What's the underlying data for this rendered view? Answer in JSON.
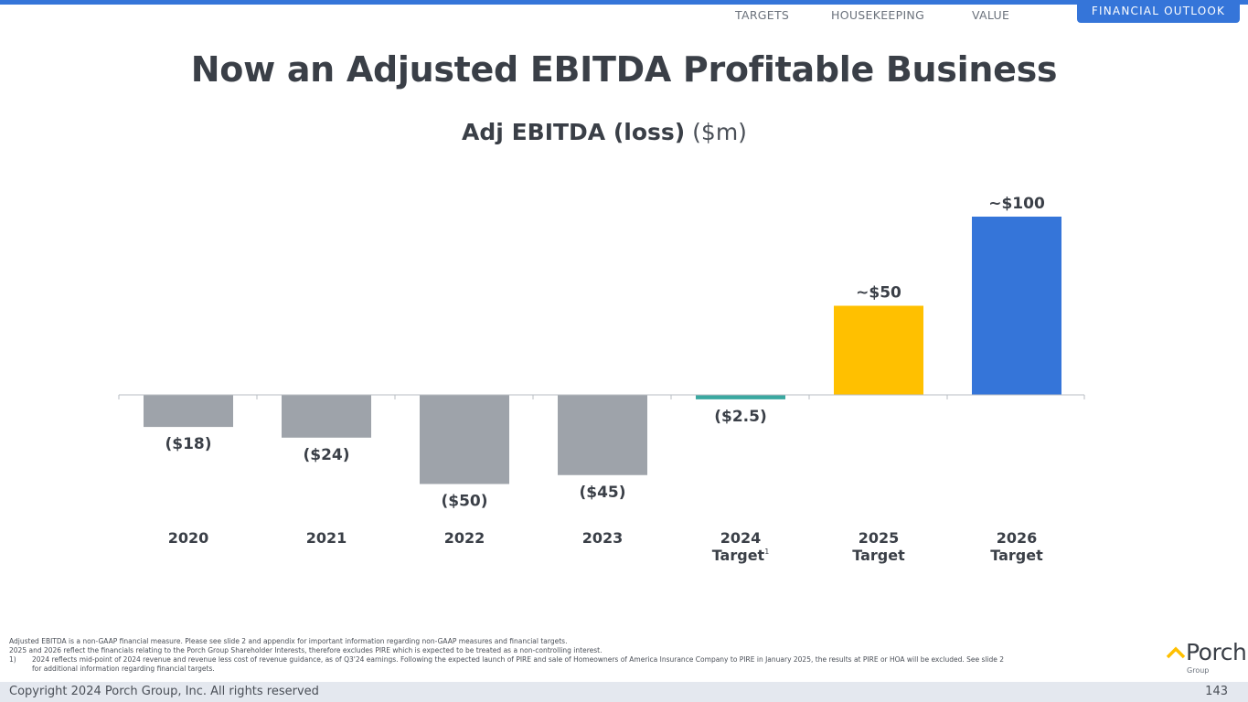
{
  "nav": {
    "items": [
      "TARGETS",
      "HOUSEKEEPING",
      "VALUE"
    ],
    "active": "FINANCIAL OUTLOOK"
  },
  "title": "Now an Adjusted EBITDA Profitable Business",
  "chart_title": {
    "bold": "Adj EBITDA (loss)",
    "unit": "($m)"
  },
  "colors": {
    "accent": "#3575d9",
    "historical": "#9ea3aa",
    "target_2024": "#3aa8a0",
    "target_2025": "#ffc000",
    "target_2026": "#3575d9"
  },
  "chart_data": {
    "type": "bar",
    "title": "Adj EBITDA (loss) ($m)",
    "categories": [
      "2020",
      "2021",
      "2022",
      "2023",
      "2024 Target",
      "2025 Target",
      "2026 Target"
    ],
    "category_lines": [
      [
        "2020"
      ],
      [
        "2021"
      ],
      [
        "2022"
      ],
      [
        "2023"
      ],
      [
        "2024",
        "Target"
      ],
      [
        "2025",
        "Target"
      ],
      [
        "2026",
        "Target"
      ]
    ],
    "category_superscripts": [
      "",
      "",
      "",
      "",
      "1",
      "",
      ""
    ],
    "values": [
      -18,
      -24,
      -50,
      -45,
      -2.5,
      50,
      100
    ],
    "data_labels": [
      "($18)",
      "($24)",
      "($50)",
      "($45)",
      "($2.5)",
      "~$50",
      "~$100"
    ],
    "bar_colors": [
      "#9ea3aa",
      "#9ea3aa",
      "#9ea3aa",
      "#9ea3aa",
      "#3aa8a0",
      "#ffc000",
      "#3575d9"
    ],
    "ylim": [
      -50,
      100
    ],
    "grid": false,
    "legend": "none"
  },
  "footnotes": {
    "line1": "Adjusted EBITDA is a non-GAAP financial measure. Please see slide 2 and appendix for important information regarding non-GAAP measures and financial targets.",
    "line2": "2025 and 2026 reflect the financials relating to the Porch Group Shareholder Interests, therefore excludes PIRE which is expected to be treated as a non-controlling interest.",
    "line3_num": "1)",
    "line3": "2024 reflects mid-point of 2024 revenue and revenue less cost of revenue guidance, as of Q3'24 earnings. Following the expected launch of PIRE and sale of Homeowners of America Insurance Company to PIRE in January 2025, the results at PIRE or HOA will be excluded. See slide 2",
    "line3_cont": "for additional information regarding financial targets."
  },
  "footer": {
    "copyright": "Copyright 2024 Porch Group, Inc. All rights reserved",
    "page_number": "143"
  },
  "logo": {
    "name": "Porch",
    "sub": "Group",
    "icon": "porch-roof-icon"
  }
}
